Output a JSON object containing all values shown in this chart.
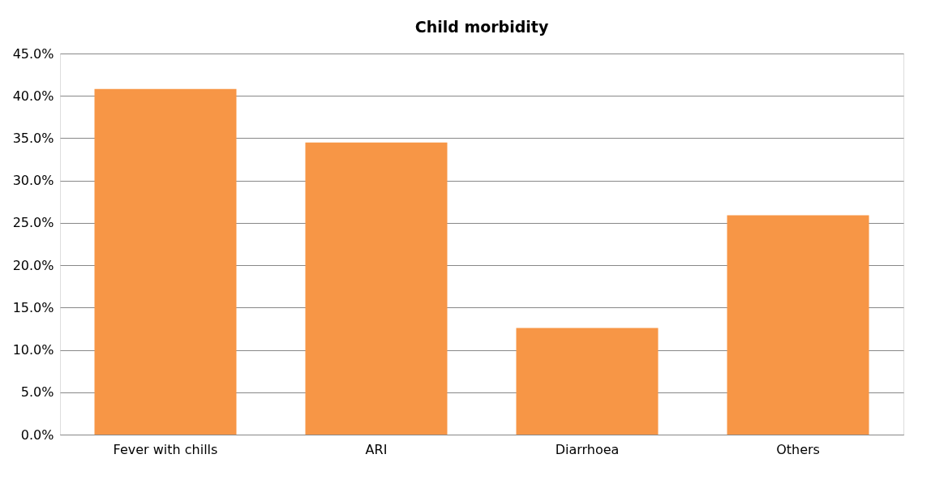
{
  "chart_data": {
    "type": "bar",
    "title": "Child morbidity",
    "categories": [
      "Fever with chills",
      "ARI",
      "Diarrhoea",
      "Others"
    ],
    "values": [
      40.8,
      34.5,
      12.6,
      25.9
    ],
    "color": "#f79646",
    "ylim": [
      0,
      45
    ],
    "yticks": [
      {
        "value": 0,
        "label": "0.0%"
      },
      {
        "value": 5,
        "label": "5.0%"
      },
      {
        "value": 10,
        "label": "10.0%"
      },
      {
        "value": 15,
        "label": "15.0%"
      },
      {
        "value": 20,
        "label": "20.0%"
      },
      {
        "value": 25,
        "label": "25.0%"
      },
      {
        "value": 30,
        "label": "30.0%"
      },
      {
        "value": 35,
        "label": "35.0%"
      },
      {
        "value": 40,
        "label": "40.0%"
      },
      {
        "value": 45,
        "label": "45.0%"
      }
    ],
    "grid": "y"
  }
}
